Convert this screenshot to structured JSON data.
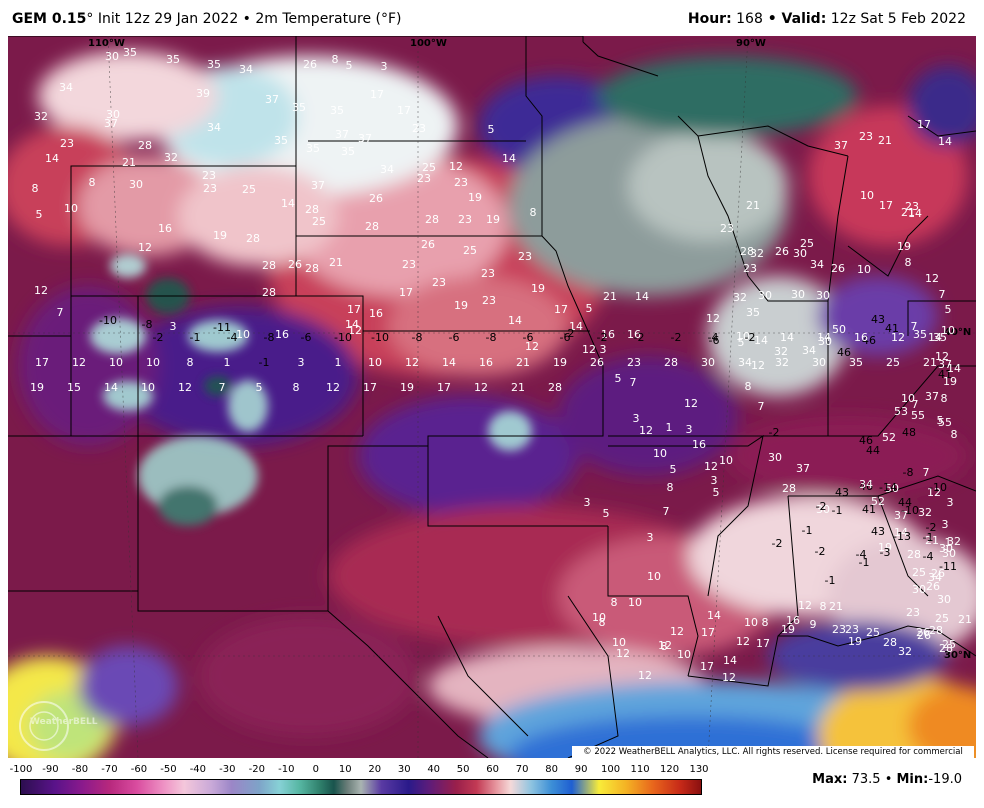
{
  "header": {
    "model": "GEM 0.15",
    "model_suffix": "° Init 12z 29 Jan 2022 • 2m Temperature (°F)",
    "hour_label": "Hour:",
    "hour_value": "168",
    "valid_label": " • Valid:",
    "valid_value": "12z Sat 5 Feb 2022"
  },
  "map": {
    "lon_labels": [
      "110°W",
      "100°W",
      "90°W"
    ],
    "lat_labels": [
      "40°N",
      "30°N"
    ],
    "watermark": "WeatherBELL",
    "copyright": "© 2022 WeatherBELL Analytics, LLC. All rights reserved. License required for commercial distribution.",
    "station_values": [
      {
        "v": "30"
      },
      {
        "v": "35"
      },
      {
        "v": "35"
      },
      {
        "v": "35"
      },
      {
        "v": "34"
      },
      {
        "v": "34"
      },
      {
        "v": "32"
      },
      {
        "v": "30"
      },
      {
        "v": "37"
      },
      {
        "v": "39"
      },
      {
        "v": "37"
      },
      {
        "v": "35"
      },
      {
        "v": "35"
      },
      {
        "v": "34"
      },
      {
        "v": "35"
      },
      {
        "v": "23"
      },
      {
        "v": "28"
      },
      {
        "v": "32"
      },
      {
        "v": "14"
      },
      {
        "v": "21"
      },
      {
        "v": "23"
      },
      {
        "v": "23"
      },
      {
        "v": "25"
      },
      {
        "v": "30"
      },
      {
        "v": "8"
      },
      {
        "v": "8"
      },
      {
        "v": "26"
      },
      {
        "v": "8"
      },
      {
        "v": "5"
      },
      {
        "v": "3"
      },
      {
        "v": "17"
      },
      {
        "v": "17"
      },
      {
        "v": "23"
      },
      {
        "v": "37"
      },
      {
        "v": "37"
      },
      {
        "v": "35"
      },
      {
        "v": "35"
      },
      {
        "v": "34"
      },
      {
        "v": "25"
      },
      {
        "v": "23"
      },
      {
        "v": "23"
      },
      {
        "v": "12"
      },
      {
        "v": "14"
      },
      {
        "v": "5"
      },
      {
        "v": "37"
      },
      {
        "v": "26"
      },
      {
        "v": "19"
      },
      {
        "v": "14"
      },
      {
        "v": "28"
      },
      {
        "v": "25"
      },
      {
        "v": "28"
      },
      {
        "v": "28"
      },
      {
        "v": "23"
      },
      {
        "v": "19"
      },
      {
        "v": "8"
      },
      {
        "v": "5"
      },
      {
        "v": "10"
      },
      {
        "v": "16"
      },
      {
        "v": "19"
      },
      {
        "v": "28"
      },
      {
        "v": "12"
      },
      {
        "v": "26"
      },
      {
        "v": "25"
      },
      {
        "v": "23"
      },
      {
        "v": "23"
      },
      {
        "v": "28"
      },
      {
        "v": "26"
      },
      {
        "v": "28"
      },
      {
        "v": "21"
      },
      {
        "v": "23"
      },
      {
        "v": "17"
      },
      {
        "v": "23"
      },
      {
        "v": "19"
      },
      {
        "v": "23"
      },
      {
        "v": "19"
      },
      {
        "v": "28"
      },
      {
        "v": "12"
      },
      {
        "v": "7"
      },
      {
        "v": "-10"
      },
      {
        "v": "-8"
      },
      {
        "v": "3"
      },
      {
        "v": "-11"
      },
      {
        "v": "10"
      },
      {
        "v": "16"
      },
      {
        "v": "17"
      },
      {
        "v": "16"
      },
      {
        "v": "14"
      },
      {
        "v": "12"
      },
      {
        "v": "5"
      },
      {
        "v": "21"
      },
      {
        "v": "14"
      },
      {
        "v": "17"
      },
      {
        "v": "14"
      },
      {
        "v": "14"
      },
      {
        "v": "12"
      },
      {
        "v": "-2"
      },
      {
        "v": "12"
      },
      {
        "v": "16"
      },
      {
        "v": "16"
      },
      {
        "v": "3"
      },
      {
        "v": "5"
      },
      {
        "v": "7"
      },
      {
        "v": "-6"
      },
      {
        "v": "12"
      },
      {
        "v": "10"
      },
      {
        "v": "5"
      },
      {
        "v": "14"
      },
      {
        "v": "12"
      },
      {
        "v": "8"
      },
      {
        "v": "7"
      },
      {
        "v": "-2"
      },
      {
        "v": "3"
      },
      {
        "v": "1"
      },
      {
        "v": "3"
      },
      {
        "v": "10"
      },
      {
        "v": "12"
      },
      {
        "v": "12"
      },
      {
        "v": "16"
      },
      {
        "v": "12"
      },
      {
        "v": "10"
      },
      {
        "v": "5"
      },
      {
        "v": "5"
      },
      {
        "v": "8"
      },
      {
        "v": "7"
      },
      {
        "v": "3"
      },
      {
        "v": "3"
      },
      {
        "v": "5"
      },
      {
        "v": "3"
      },
      {
        "v": "10"
      },
      {
        "v": "8"
      },
      {
        "v": "10"
      },
      {
        "v": "10"
      },
      {
        "v": "8"
      },
      {
        "v": "10"
      },
      {
        "v": "12"
      },
      {
        "v": "12"
      },
      {
        "v": "14"
      },
      {
        "v": "8"
      },
      {
        "v": "10"
      },
      {
        "v": "12"
      },
      {
        "v": "12"
      },
      {
        "v": "17"
      },
      {
        "v": "10"
      },
      {
        "v": "8"
      },
      {
        "v": "12"
      },
      {
        "v": "17"
      },
      {
        "v": "14"
      },
      {
        "v": "12"
      },
      {
        "v": "17"
      },
      {
        "v": "19"
      },
      {
        "v": "16"
      },
      {
        "v": "9"
      },
      {
        "v": "12"
      },
      {
        "v": "8"
      },
      {
        "v": "21"
      },
      {
        "v": "23"
      },
      {
        "v": "23"
      },
      {
        "v": "19"
      },
      {
        "v": "25"
      },
      {
        "v": "28"
      },
      {
        "v": "32"
      },
      {
        "v": "26"
      },
      {
        "v": "28"
      },
      {
        "v": "26"
      },
      {
        "v": "28"
      },
      {
        "v": "25"
      },
      {
        "v": "23"
      },
      {
        "v": "30"
      },
      {
        "v": "30"
      },
      {
        "v": "26"
      },
      {
        "v": "30"
      },
      {
        "v": "34"
      },
      {
        "v": "28"
      },
      {
        "v": "32"
      },
      {
        "v": "37"
      },
      {
        "v": "43"
      },
      {
        "v": "46"
      },
      {
        "v": "50"
      },
      {
        "v": "52"
      },
      {
        "v": "44"
      },
      {
        "v": "32"
      },
      {
        "v": "30"
      },
      {
        "v": "21"
      },
      {
        "v": "21"
      },
      {
        "v": "25"
      },
      {
        "v": "26"
      },
      {
        "v": "25"
      },
      {
        "v": "14"
      },
      {
        "v": "19"
      },
      {
        "v": "43"
      },
      {
        "v": "41"
      },
      {
        "v": "34"
      },
      {
        "v": "30"
      },
      {
        "v": "28"
      },
      {
        "v": "30"
      },
      {
        "v": "37"
      },
      {
        "v": "44"
      },
      {
        "v": "46"
      },
      {
        "v": "52"
      },
      {
        "v": "48"
      },
      {
        "v": "53"
      },
      {
        "v": "55"
      },
      {
        "v": "55"
      },
      {
        "v": "37"
      },
      {
        "v": "41"
      },
      {
        "v": "37"
      },
      {
        "v": "35"
      },
      {
        "v": "35"
      },
      {
        "v": "41"
      },
      {
        "v": "43"
      },
      {
        "v": "46"
      },
      {
        "v": "46"
      },
      {
        "v": "50"
      },
      {
        "v": "30"
      },
      {
        "v": "34"
      },
      {
        "v": "32"
      },
      {
        "v": "35"
      },
      {
        "v": "32"
      },
      {
        "v": "30"
      },
      {
        "v": "30"
      },
      {
        "v": "30"
      },
      {
        "v": "32"
      },
      {
        "v": "26"
      },
      {
        "v": "25"
      },
      {
        "v": "21"
      },
      {
        "v": "23"
      },
      {
        "v": "28"
      },
      {
        "v": "23"
      },
      {
        "v": "30"
      },
      {
        "v": "34"
      },
      {
        "v": "26"
      },
      {
        "v": "37"
      },
      {
        "v": "23"
      },
      {
        "v": "21"
      },
      {
        "v": "17"
      },
      {
        "v": "14"
      },
      {
        "v": "10"
      },
      {
        "v": "17"
      },
      {
        "v": "23"
      },
      {
        "v": "21"
      },
      {
        "v": "14"
      },
      {
        "v": "19"
      },
      {
        "v": "10"
      },
      {
        "v": "12"
      },
      {
        "v": "8"
      },
      {
        "v": "7"
      },
      {
        "v": "5"
      },
      {
        "v": "7"
      },
      {
        "v": "10"
      },
      {
        "v": "12"
      },
      {
        "v": "14"
      },
      {
        "v": "19"
      },
      {
        "v": "8"
      },
      {
        "v": "10"
      },
      {
        "v": "7"
      },
      {
        "v": "5"
      },
      {
        "v": "8"
      },
      {
        "v": "7"
      },
      {
        "v": "12"
      },
      {
        "v": "3"
      },
      {
        "v": "3"
      },
      {
        "v": "1"
      },
      {
        "v": "-2"
      },
      {
        "v": "-4"
      },
      {
        "v": "-4"
      },
      {
        "v": "-2"
      },
      {
        "v": "-1"
      },
      {
        "v": "-1"
      },
      {
        "v": "-2"
      },
      {
        "v": "-2"
      },
      {
        "v": "-1"
      },
      {
        "v": "-1"
      },
      {
        "v": "-3"
      },
      {
        "v": "-1"
      },
      {
        "v": "-11"
      },
      {
        "v": "-13"
      },
      {
        "v": "-10"
      },
      {
        "v": "-14"
      },
      {
        "v": "-8"
      },
      {
        "v": "-10"
      },
      {
        "v": "-2"
      },
      {
        "v": "-1"
      },
      {
        "v": "-4"
      },
      {
        "v": "-8"
      },
      {
        "v": "-6"
      },
      {
        "v": "-10"
      },
      {
        "v": "-10"
      },
      {
        "v": "-8"
      },
      {
        "v": "-6"
      },
      {
        "v": "-8"
      },
      {
        "v": "-6"
      },
      {
        "v": "-6"
      },
      {
        "v": "-2"
      },
      {
        "v": "-2"
      },
      {
        "v": "-2"
      },
      {
        "v": "-4"
      },
      {
        "v": "-2"
      },
      {
        "v": "14"
      },
      {
        "v": "14"
      },
      {
        "v": "16"
      },
      {
        "v": "12"
      },
      {
        "v": "14"
      },
      {
        "v": "17"
      },
      {
        "v": "12"
      },
      {
        "v": "10"
      },
      {
        "v": "10"
      },
      {
        "v": "8"
      },
      {
        "v": "1"
      },
      {
        "v": "-1"
      },
      {
        "v": "3"
      },
      {
        "v": "1"
      },
      {
        "v": "10"
      },
      {
        "v": "12"
      },
      {
        "v": "14"
      },
      {
        "v": "16"
      },
      {
        "v": "21"
      },
      {
        "v": "19"
      },
      {
        "v": "26"
      },
      {
        "v": "23"
      },
      {
        "v": "28"
      },
      {
        "v": "30"
      },
      {
        "v": "34"
      },
      {
        "v": "32"
      },
      {
        "v": "30"
      },
      {
        "v": "35"
      },
      {
        "v": "25"
      },
      {
        "v": "21"
      },
      {
        "v": "19"
      },
      {
        "v": "15"
      },
      {
        "v": "14"
      },
      {
        "v": "10"
      },
      {
        "v": "12"
      },
      {
        "v": "7"
      },
      {
        "v": "5"
      },
      {
        "v": "8"
      },
      {
        "v": "12"
      },
      {
        "v": "17"
      },
      {
        "v": "19"
      },
      {
        "v": "17"
      },
      {
        "v": "12"
      },
      {
        "v": "21"
      },
      {
        "v": "28"
      }
    ]
  },
  "colorbar": {
    "ticks": [
      "-100",
      "-90",
      "-80",
      "-70",
      "-60",
      "-50",
      "-40",
      "-30",
      "-20",
      "-10",
      "0",
      "10",
      "20",
      "30",
      "40",
      "50",
      "60",
      "70",
      "80",
      "90",
      "100",
      "110",
      "120",
      "130"
    ]
  },
  "stats": {
    "max_label": "Max:",
    "max_value": "73.5",
    "sep": " • ",
    "min_label": "Min:",
    "min_value": "-19.0"
  }
}
